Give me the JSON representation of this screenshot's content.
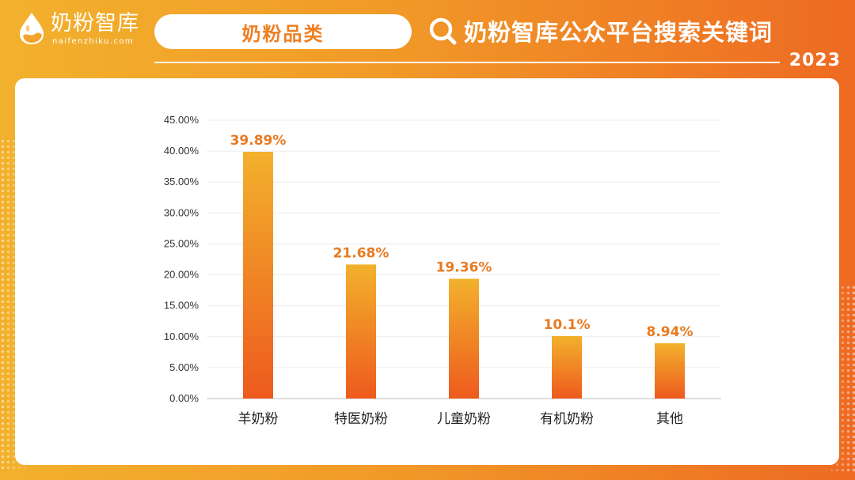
{
  "logo": {
    "cn": "奶粉智库",
    "en": "naifenzhiku.com",
    "icon": "milk-drop-icon"
  },
  "category_pill": "奶粉品类",
  "header": {
    "title": "奶粉智库公众平台搜索关键词",
    "year": "2023",
    "icon": "search-icon"
  },
  "colors": {
    "accent": "#ee7f22",
    "bar_top": "#f2b12c",
    "bar_bottom": "#ee5a1e",
    "value_label": "#e87a22"
  },
  "chart_data": {
    "type": "bar",
    "categories": [
      "羊奶粉",
      "特医奶粉",
      "儿童奶粉",
      "有机奶粉",
      "其他"
    ],
    "values": [
      39.89,
      21.68,
      19.36,
      10.1,
      8.94
    ],
    "value_labels": [
      "39.89%",
      "21.68%",
      "19.36%",
      "10.1%",
      "8.94%"
    ],
    "y_ticks": [
      "0.00%",
      "5.00%",
      "10.00%",
      "15.00%",
      "20.00%",
      "25.00%",
      "30.00%",
      "35.00%",
      "40.00%",
      "45.00%"
    ],
    "ylim": [
      0,
      45
    ],
    "grid": true,
    "title": "",
    "xlabel": "",
    "ylabel": ""
  }
}
